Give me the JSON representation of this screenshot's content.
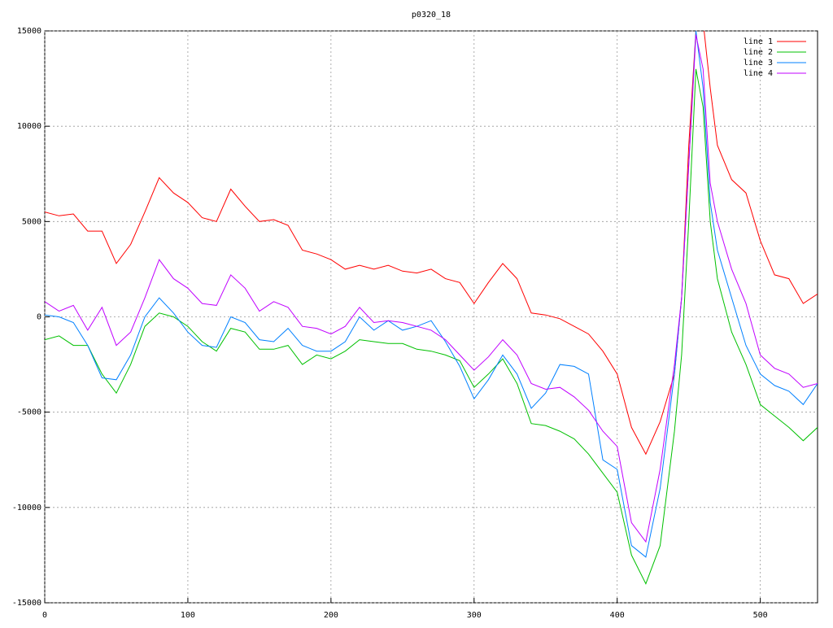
{
  "chart_data": {
    "type": "line",
    "title": "p0320_18",
    "x": [
      0,
      10,
      20,
      30,
      40,
      50,
      60,
      70,
      80,
      90,
      100,
      110,
      120,
      130,
      140,
      150,
      160,
      170,
      180,
      190,
      200,
      210,
      220,
      230,
      240,
      250,
      260,
      270,
      280,
      290,
      300,
      310,
      320,
      330,
      340,
      350,
      360,
      370,
      380,
      390,
      400,
      410,
      420,
      430,
      440,
      445,
      450,
      455,
      460,
      465,
      470,
      480,
      490,
      500,
      510,
      520,
      530,
      540
    ],
    "series": [
      {
        "name": "line 1",
        "color": "#ff0000",
        "values": [
          5500,
          5300,
          5400,
          4500,
          4500,
          2800,
          3800,
          5500,
          7300,
          6500,
          6000,
          5200,
          5000,
          6700,
          5800,
          5000,
          5100,
          4800,
          3500,
          3300,
          3000,
          2500,
          2700,
          2500,
          2700,
          2400,
          2300,
          2500,
          2000,
          1800,
          700,
          1800,
          2800,
          2000,
          200,
          100,
          -100,
          -500,
          -900,
          -1800,
          -3000,
          -5800,
          -7200,
          -5500,
          -3000,
          1000,
          9000,
          15000,
          15500,
          12000,
          9000,
          7200,
          6500,
          4000,
          2200,
          2000,
          700,
          1200
        ]
      },
      {
        "name": "line 2",
        "color": "#00c000",
        "values": [
          -1200,
          -1000,
          -1500,
          -1500,
          -3000,
          -4000,
          -2500,
          -500,
          200,
          0,
          -500,
          -1300,
          -1800,
          -600,
          -800,
          -1700,
          -1700,
          -1500,
          -2500,
          -2000,
          -2200,
          -1800,
          -1200,
          -1300,
          -1400,
          -1400,
          -1700,
          -1800,
          -2000,
          -2300,
          -3700,
          -3000,
          -2200,
          -3500,
          -5600,
          -5700,
          -6000,
          -6400,
          -7200,
          -8200,
          -9200,
          -12500,
          -14000,
          -12000,
          -6000,
          -2000,
          5000,
          13000,
          11000,
          5000,
          2000,
          -800,
          -2500,
          -4600,
          -5200,
          -5800,
          -6500,
          -5800
        ]
      },
      {
        "name": "line 3",
        "color": "#0080ff",
        "values": [
          100,
          0,
          -300,
          -1500,
          -3200,
          -3300,
          -2000,
          0,
          1000,
          200,
          -800,
          -1500,
          -1600,
          0,
          -300,
          -1200,
          -1300,
          -600,
          -1500,
          -1800,
          -1800,
          -1300,
          0,
          -700,
          -200,
          -700,
          -500,
          -200,
          -1300,
          -2600,
          -4300,
          -3300,
          -2000,
          -3000,
          -4800,
          -4000,
          -2500,
          -2600,
          -3000,
          -7500,
          -8000,
          -12000,
          -12600,
          -9000,
          -3000,
          1000,
          8000,
          15000,
          12000,
          6000,
          3500,
          1000,
          -1500,
          -3000,
          -3600,
          -3900,
          -4600,
          -3500
        ]
      },
      {
        "name": "line 4",
        "color": "#c000ff",
        "values": [
          800,
          300,
          600,
          -700,
          500,
          -1500,
          -800,
          1000,
          3000,
          2000,
          1500,
          700,
          600,
          2200,
          1500,
          300,
          800,
          500,
          -500,
          -600,
          -900,
          -500,
          500,
          -300,
          -200,
          -300,
          -500,
          -700,
          -1200,
          -2000,
          -2800,
          -2100,
          -1200,
          -2000,
          -3500,
          -3800,
          -3700,
          -4200,
          -4900,
          -6000,
          -6800,
          -10800,
          -11800,
          -8000,
          -2500,
          1000,
          8000,
          14800,
          13000,
          7000,
          5000,
          2500,
          700,
          -2000,
          -2700,
          -3000,
          -3700,
          -3500
        ]
      }
    ],
    "xlim": [
      0,
      540
    ],
    "ylim": [
      -15000,
      15000
    ],
    "xticks": [
      0,
      100,
      200,
      300,
      400,
      500
    ],
    "yticks": [
      -15000,
      -10000,
      -5000,
      0,
      5000,
      10000,
      15000
    ],
    "grid": true,
    "legend": "top-right"
  }
}
